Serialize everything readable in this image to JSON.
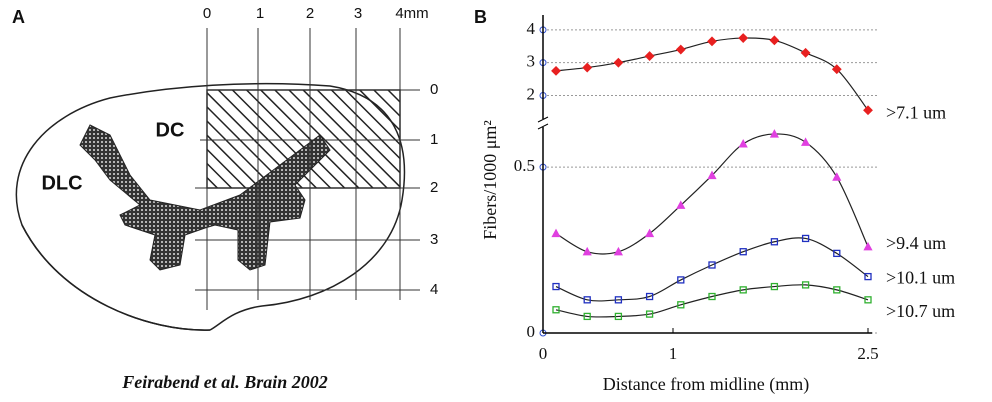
{
  "panel_a": {
    "letter": "A",
    "top_scale": [
      "0",
      "1",
      "2",
      "3",
      "4mm"
    ],
    "right_scale": [
      "0",
      "1",
      "2",
      "3",
      "4"
    ],
    "regions": [
      "DC",
      "DLC"
    ],
    "citation": "Feirabend et al. Brain 2002"
  },
  "chart_data": {
    "type": "line",
    "letter": "B",
    "x_label": "Distance from midline (mm)",
    "y_label": "Fibers/1000 μm²",
    "x": [
      0.1,
      0.34,
      0.58,
      0.82,
      1.06,
      1.3,
      1.54,
      1.78,
      2.02,
      2.26,
      2.5
    ],
    "xlim": [
      0,
      2.5
    ],
    "xticks": [
      0,
      1,
      2.5
    ],
    "ylim": [
      0,
      0.627
    ],
    "yticks": [
      0,
      0.5
    ],
    "y2lim": [
      1.1,
      4.3
    ],
    "y2ticks": [
      2,
      3,
      4
    ],
    "broken_axis": true,
    "series": [
      {
        "name": ">7.1 um",
        "color": "#e82020",
        "marker": "diamond",
        "axis": "y2",
        "values": [
          2.75,
          2.85,
          3.0,
          3.2,
          3.4,
          3.65,
          3.75,
          3.68,
          3.3,
          2.8,
          1.55
        ]
      },
      {
        "name": ">9.4 um",
        "color": "#e040e0",
        "marker": "triangle",
        "values": [
          0.3,
          0.245,
          0.245,
          0.3,
          0.385,
          0.475,
          0.57,
          0.6,
          0.575,
          0.47,
          0.26
        ]
      },
      {
        "name": ">10.1 um",
        "color": "#2030c0",
        "marker": "square",
        "values": [
          0.14,
          0.1,
          0.1,
          0.11,
          0.16,
          0.205,
          0.245,
          0.275,
          0.285,
          0.24,
          0.17
        ]
      },
      {
        "name": ">10.7 um",
        "color": "#30b030",
        "marker": "square",
        "values": [
          0.07,
          0.05,
          0.05,
          0.057,
          0.085,
          0.11,
          0.13,
          0.14,
          0.145,
          0.13,
          0.1
        ]
      }
    ]
  }
}
